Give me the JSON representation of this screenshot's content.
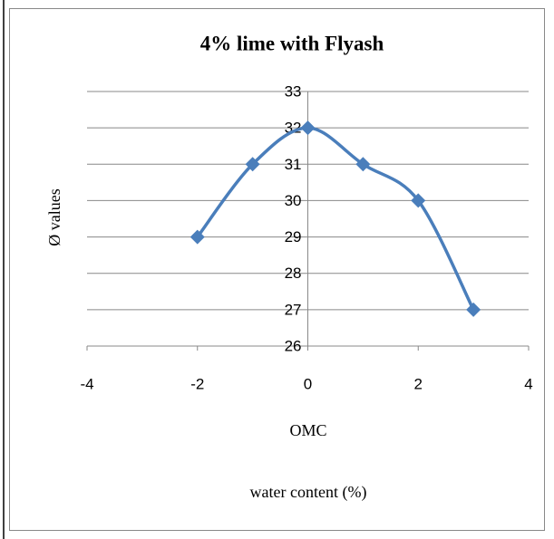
{
  "chart_data": {
    "type": "scatter",
    "title": "4% lime with Flyash",
    "ylabel": "Ø values",
    "xlabel": "OMC",
    "annotations": [
      "water content (%)"
    ],
    "series": [
      {
        "x": [
          -2,
          -1,
          0,
          1,
          2,
          3
        ],
        "values": [
          29,
          31,
          32,
          31,
          30,
          27
        ],
        "color": "#4a7ebb"
      }
    ],
    "xlim": [
      -4,
      4
    ],
    "xticks": [
      -4,
      -2,
      0,
      2,
      4
    ],
    "ylim": [
      26,
      33
    ],
    "yticks": [
      26,
      27,
      28,
      29,
      30,
      31,
      32,
      33
    ],
    "grid": true,
    "smooth": true
  }
}
